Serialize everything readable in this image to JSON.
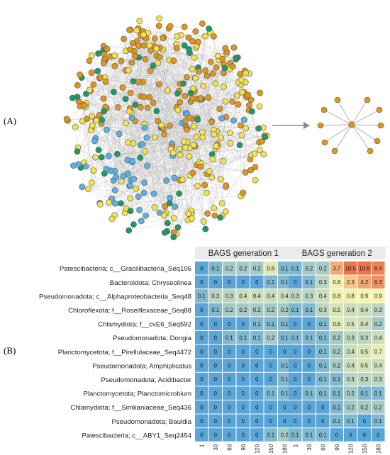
{
  "panels": {
    "a_label": "(A)",
    "b_label": "(B)"
  },
  "network": {
    "node_colors": {
      "orange": "#e0961c",
      "yellow": "#f4e24a",
      "blue": "#5bb1e3",
      "green": "#1e9a6a"
    },
    "edge_color": "#bdbdbd",
    "subnetwork": {
      "hub_color": "#e0961c",
      "spokes": 10
    }
  },
  "chart_data": {
    "type": "heatmap",
    "facets": [
      "BAGS generation 1",
      "BAGS generation 2"
    ],
    "x": [
      "1",
      "30",
      "60",
      "90",
      "120",
      "150",
      "180"
    ],
    "rows": [
      "Patescibacteria; c__Gracilibacteria_Seq106",
      "Bacteroidota; Chryseolinea",
      "Pseudomonadota; c__Alphaproteobacteria_Seq48",
      "Chloroflexota; f__Roseiflexaceae_Seq88",
      "Chlamydiota; f__cvE6_Seq592",
      "Pseudomonadota; Dongia",
      "Planctomycetota; f__Pirellulaceae_Seq4472",
      "Pseudomonadota; Amphiplicatus",
      "Pseudomonadota; Acidibacter",
      "Planctomycetota; Planctomicrobium",
      "Chlamydiota; f__Simkaniaceae_Seq436",
      "Pseudomonadota; Bauldia",
      "Patescibacteria; c__ABY1_Seq2454"
    ],
    "values": [
      [
        [
          0,
          0.1,
          0.2,
          0.2,
          0.2,
          0.6,
          0.1
        ],
        [
          0.1,
          0.2,
          0.2,
          3.7,
          10.5,
          10.8,
          8.4
        ]
      ],
      [
        [
          0,
          0,
          0,
          0,
          0,
          0.1,
          0.1
        ],
        [
          0,
          0.1,
          0.3,
          0.8,
          2.3,
          4.2,
          6.3
        ]
      ],
      [
        [
          0.1,
          0.3,
          0.3,
          0.4,
          0.4,
          0.4,
          0.4
        ],
        [
          0.3,
          0.3,
          0.4,
          0.8,
          0.8,
          0.9,
          0.9
        ]
      ],
      [
        [
          0,
          0.1,
          0.2,
          0.2,
          0.2,
          0.2,
          0.2
        ],
        [
          0.1,
          0.1,
          0.3,
          0.5,
          0.4,
          0.4,
          0.3
        ]
      ],
      [
        [
          0,
          0,
          0,
          0,
          0.1,
          0.1,
          0.1
        ],
        [
          0,
          0,
          0.1,
          0.6,
          0.5,
          0.4,
          0.2
        ]
      ],
      [
        [
          0,
          0,
          0.1,
          0.1,
          0.1,
          0.2,
          0.1
        ],
        [
          0.1,
          0.1,
          0.1,
          0.2,
          0.3,
          0.3,
          0.4
        ]
      ],
      [
        [
          0,
          0,
          0,
          0,
          0,
          0,
          0
        ],
        [
          0,
          0,
          0.1,
          0.2,
          0.4,
          0.5,
          0.7
        ]
      ],
      [
        [
          0,
          0,
          0,
          0,
          0,
          0,
          0.1
        ],
        [
          0,
          0,
          0.1,
          0.2,
          0.4,
          0.5,
          0.4
        ]
      ],
      [
        [
          0,
          0,
          0,
          0,
          0,
          0,
          0.1
        ],
        [
          0,
          0,
          0.1,
          0.1,
          0.3,
          0.3,
          0.3
        ]
      ],
      [
        [
          0,
          0,
          0,
          0,
          0,
          0.1,
          0.1
        ],
        [
          0,
          0.1,
          0.1,
          0.1,
          0.2,
          0.1,
          0.1
        ]
      ],
      [
        [
          0,
          0,
          0,
          0,
          0,
          0,
          0
        ],
        [
          0,
          0,
          0,
          0.1,
          0.2,
          0.2,
          0.2
        ]
      ],
      [
        [
          0,
          0,
          0,
          0,
          0,
          0,
          0
        ],
        [
          0,
          0,
          0,
          0.1,
          0.1,
          0,
          0.1
        ]
      ],
      [
        [
          0,
          0,
          0,
          0,
          0,
          0.1,
          0.2
        ],
        [
          0.1,
          0.1,
          0.1,
          0,
          0,
          0,
          0
        ]
      ]
    ],
    "color_scale": {
      "type": "log",
      "low_color": "#5aa5d8",
      "mid_color": "#fbf5b0",
      "high_color": "#e8754a"
    },
    "xlabel": "",
    "ylabel": ""
  }
}
